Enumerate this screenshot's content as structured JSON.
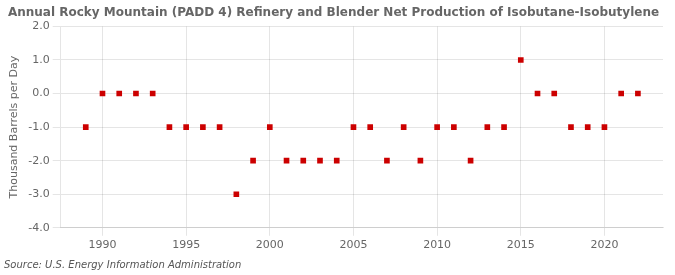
{
  "chart_data": {
    "type": "scatter",
    "title": "Annual Rocky Mountain (PADD 4) Refinery and Blender Net Production of Isobutane-Isobutylene",
    "y_label": "Thousand Barrels per Day",
    "annotations": [
      "Source: U.S. Energy Information Administration"
    ],
    "x": [
      1989,
      1990,
      1991,
      1992,
      1993,
      1994,
      1995,
      1996,
      1997,
      1998,
      1999,
      2000,
      2001,
      2002,
      2003,
      2004,
      2005,
      2006,
      2007,
      2008,
      2009,
      2010,
      2011,
      2012,
      2013,
      2014,
      2015,
      2016,
      2017,
      2018,
      2019,
      2020,
      2021,
      2022
    ],
    "values": [
      -1,
      0,
      0,
      0,
      0,
      -1,
      -1,
      -1,
      -1,
      -3,
      -2,
      -1,
      -2,
      -2,
      -2,
      -2,
      -1,
      -1,
      -2,
      -1,
      -2,
      -1,
      -1,
      -2,
      -1,
      -1,
      1,
      0,
      0,
      -1,
      -1,
      -1,
      0,
      0
    ],
    "color": "#cc0000",
    "marker": "square",
    "xlim": [
      1987.5,
      2023.5
    ],
    "xticks": [
      1990,
      1995,
      2000,
      2005,
      2010,
      2015,
      2020
    ],
    "ylim": [
      -4.0,
      2.0
    ],
    "yticks": [
      {
        "value": -4,
        "label": "-4.0"
      },
      {
        "value": -3,
        "label": "-3.0"
      },
      {
        "value": -2,
        "label": "-2.0"
      },
      {
        "value": -1,
        "label": "-1.0"
      },
      {
        "value": 0,
        "label": "0.0"
      },
      {
        "value": 1,
        "label": "1.0"
      },
      {
        "value": 2,
        "label": "2.0"
      }
    ],
    "grid": true
  }
}
